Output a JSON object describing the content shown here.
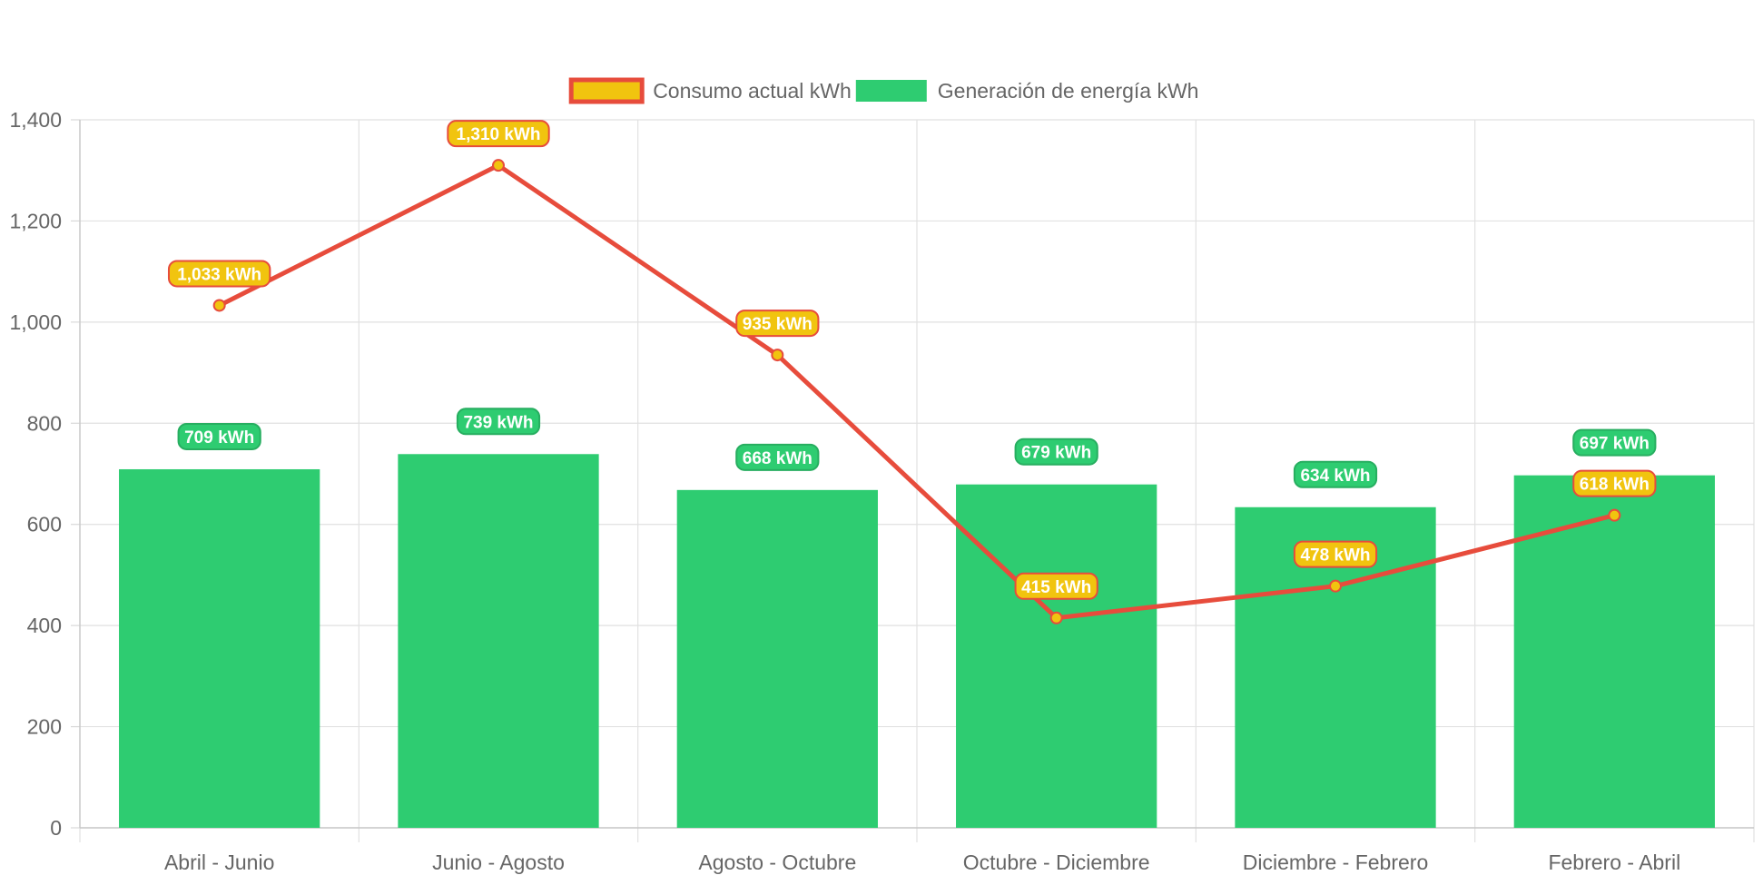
{
  "chart_data": {
    "type": "bar",
    "categories": [
      "Abril - Junio",
      "Junio - Agosto",
      "Agosto - Octubre",
      "Octubre - Diciembre",
      "Diciembre - Febrero",
      "Febrero - Abril"
    ],
    "series": [
      {
        "name": "Consumo actual kWh",
        "type": "line",
        "values": [
          1033,
          1310,
          935,
          415,
          478,
          618
        ],
        "labels": [
          "1,033 kWh",
          "1,310 kWh",
          "935 kWh",
          "415 kWh",
          "478 kWh",
          "618 kWh"
        ],
        "color": "#e74c3c",
        "fill": "#f1c40f"
      },
      {
        "name": "Generación de energía kWh",
        "type": "bar",
        "values": [
          709,
          739,
          668,
          679,
          634,
          697
        ],
        "labels": [
          "709 kWh",
          "739 kWh",
          "668 kWh",
          "679 kWh",
          "634 kWh",
          "697 kWh"
        ],
        "color": "#2ecc71"
      }
    ],
    "ylim": [
      0,
      1400
    ],
    "yticks": [
      0,
      200,
      400,
      600,
      800,
      1000,
      1200,
      1400
    ],
    "ytick_labels": [
      "0",
      "200",
      "400",
      "600",
      "800",
      "1,000",
      "1,200",
      "1,400"
    ],
    "grid": true,
    "legend": "top-center",
    "title": "",
    "xlabel": "",
    "ylabel": ""
  }
}
